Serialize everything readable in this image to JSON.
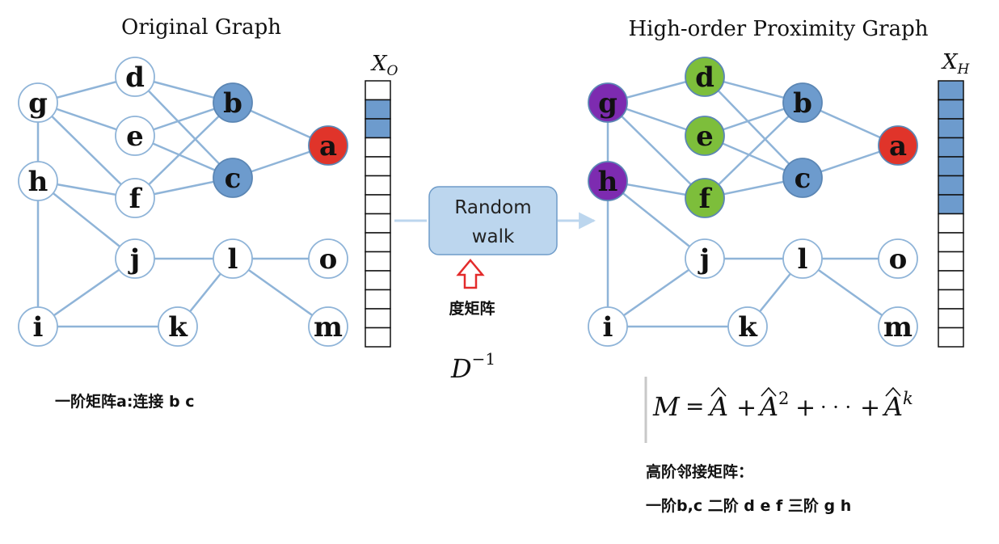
{
  "left_title": "Original Graph",
  "right_title": "High-order Proximity Graph",
  "vector_left_label": {
    "base": "X",
    "sub": "O"
  },
  "vector_right_label": {
    "base": "X",
    "sub": "H"
  },
  "random_walk_box": {
    "line1": "Random",
    "line2": "walk"
  },
  "degree_matrix_label": "度矩阵",
  "degree_formula": {
    "base": "D",
    "sup": "−1"
  },
  "first_order_note": "一阶矩阵a:连接 b c",
  "formula": {
    "lhs": "M",
    "eq": "=",
    "t1": "A",
    "plus1": "+",
    "t2": "A",
    "t2_exp": "2",
    "plus2": "+",
    "dots": "· · ·",
    "plus3": "+",
    "t3": "A",
    "t3_exp": "k"
  },
  "high_order_title": "高阶邻接矩阵：",
  "high_order_detail": "一阶b,c  二阶 d e f 三阶 g h",
  "node_labels": [
    "g",
    "d",
    "e",
    "f",
    "b",
    "c",
    "a",
    "h",
    "j",
    "l",
    "o",
    "i",
    "k",
    "m"
  ],
  "left_vector": {
    "cells": 14,
    "filled": [
      1,
      2
    ]
  },
  "right_vector": {
    "cells": 14,
    "filled": [
      0,
      1,
      2,
      3,
      4,
      5,
      6
    ]
  },
  "colors": {
    "edge": "#8fb4d8",
    "node_border": "#8fb4d8",
    "blue_node": "#6d9bcd",
    "red_node": "#e0342a",
    "green_node": "#7dbe3b",
    "purple_node": "#7d2bb0",
    "box_fill": "#bcd6ee",
    "box_border": "#6f9cc9",
    "arrow_red": "#e32b2b",
    "cell_fill": "#6d9bcd"
  },
  "left_node_fill": {
    "a": "red",
    "b": "blue",
    "c": "blue"
  },
  "right_node_fill": {
    "a": "red",
    "b": "blue",
    "c": "blue",
    "d": "green",
    "e": "green",
    "f": "green",
    "g": "purple",
    "h": "purple"
  }
}
